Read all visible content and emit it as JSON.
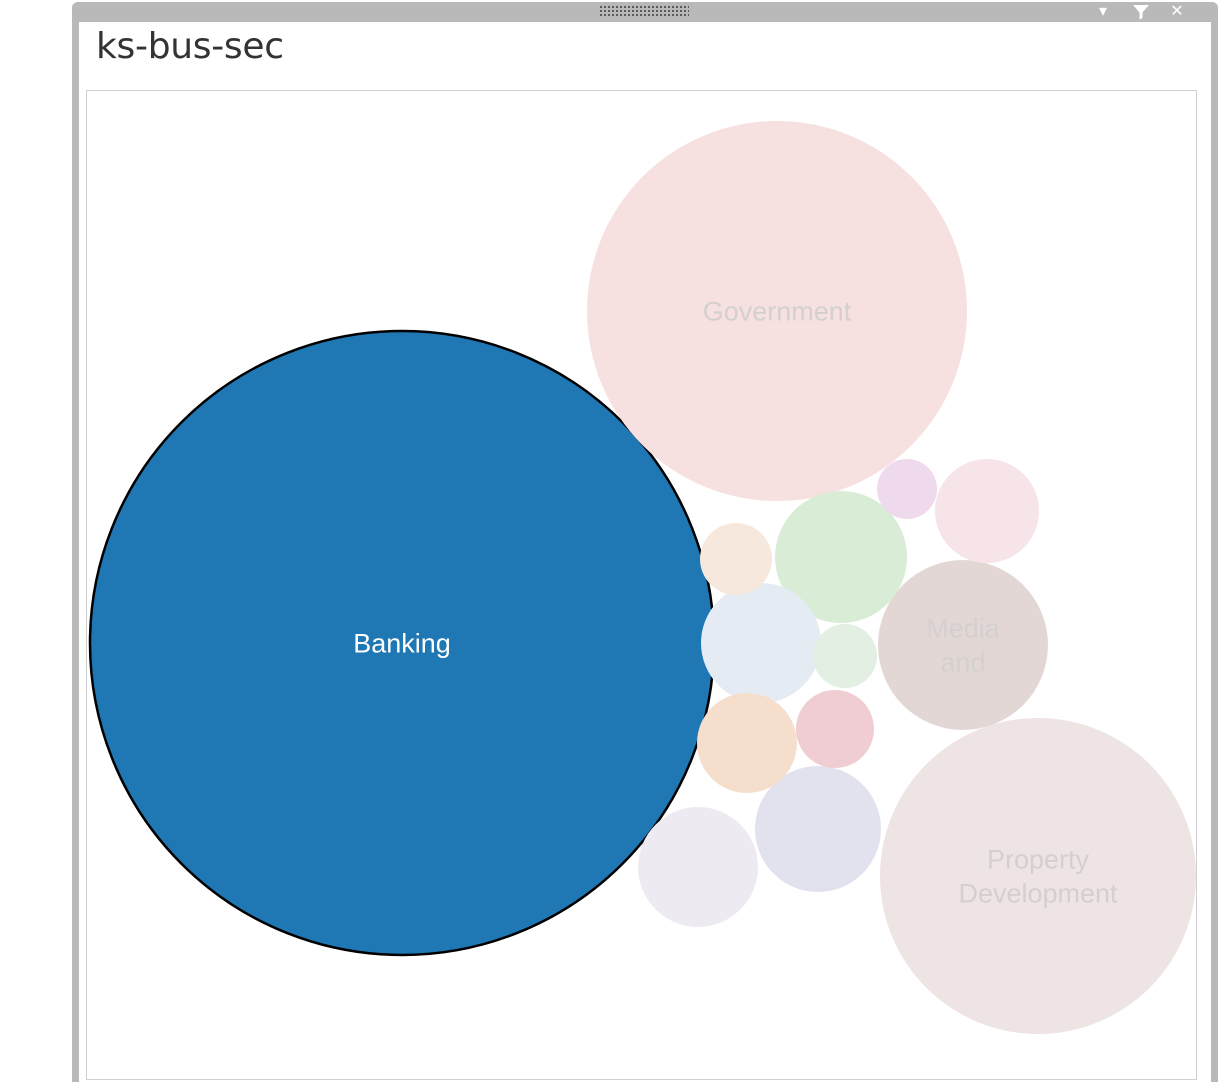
{
  "window": {
    "title": "ks-bus-sec",
    "controls": [
      {
        "name": "dropdown-icon",
        "glyph": "▾"
      },
      {
        "name": "filter-icon",
        "glyph": "⏷"
      },
      {
        "name": "close-icon",
        "glyph": "✕"
      }
    ]
  },
  "chart_data": {
    "type": "bubble",
    "title": "ks-bus-sec",
    "selected": "Banking",
    "colors": {
      "selected_fill": "#1f77b4",
      "selected_stroke": "#000000",
      "selected_label": "#ffffff",
      "dimmed_label": "#d4d0d0"
    },
    "bubbles": [
      {
        "label": "Banking",
        "display_lines": [
          "Banking"
        ],
        "relative_size": 1.0,
        "color": "#1f77b4"
      },
      {
        "label": "Government",
        "display_lines": [
          "Government"
        ],
        "relative_size": 0.37,
        "color": "#f7e0e0"
      },
      {
        "label": "Property Development",
        "display_lines": [
          "Property",
          "Development"
        ],
        "relative_size": 0.26,
        "color": "#ede4e3"
      },
      {
        "label": "Media and",
        "display_lines": [
          "Media",
          "and"
        ],
        "relative_size": 0.073,
        "color": "#e2d7d5"
      },
      {
        "label": "",
        "display_lines": [],
        "relative_size": 0.045,
        "color": "#d9ecd6"
      },
      {
        "label": "",
        "display_lines": [],
        "relative_size": 0.04,
        "color": "#e2e1ee"
      },
      {
        "label": "",
        "display_lines": [],
        "relative_size": 0.035,
        "color": "#e5ebf3"
      },
      {
        "label": "",
        "display_lines": [],
        "relative_size": 0.035,
        "color": "#eeeaf1"
      },
      {
        "label": "",
        "display_lines": [],
        "relative_size": 0.025,
        "color": "#f5dfcc"
      },
      {
        "label": "",
        "display_lines": [],
        "relative_size": 0.027,
        "color": "#f6e4e9"
      },
      {
        "label": "",
        "display_lines": [],
        "relative_size": 0.016,
        "color": "#f6e8dc"
      },
      {
        "label": "",
        "display_lines": [],
        "relative_size": 0.016,
        "color": "#f0cdd2"
      },
      {
        "label": "",
        "display_lines": [],
        "relative_size": 0.011,
        "color": "#e3efe3"
      },
      {
        "label": "",
        "display_lines": [],
        "relative_size": 0.009,
        "color": "#efd9ec"
      }
    ]
  }
}
